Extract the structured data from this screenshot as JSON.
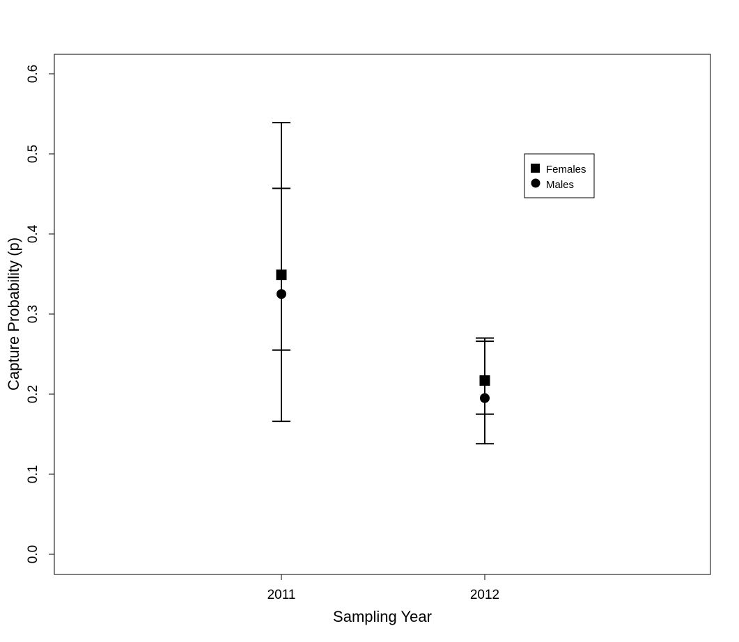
{
  "chart_data": {
    "type": "scatter",
    "xlabel": "Sampling Year",
    "ylabel": "Capture Probability (p)",
    "categories": [
      "2011",
      "2012"
    ],
    "ylim": [
      0.0,
      0.62
    ],
    "yticks": [
      "0.0",
      "0.1",
      "0.2",
      "0.3",
      "0.4",
      "0.5",
      "0.6"
    ],
    "grid": false,
    "legend_position": "top-right",
    "series": [
      {
        "name": "Females",
        "marker": "square",
        "color": "#000000",
        "points": [
          {
            "x": "2011",
            "y": 0.349,
            "lower": 0.255,
            "upper": 0.457
          },
          {
            "x": "2012",
            "y": 0.217,
            "lower": 0.175,
            "upper": 0.266
          }
        ]
      },
      {
        "name": "Males",
        "marker": "circle",
        "color": "#000000",
        "points": [
          {
            "x": "2011",
            "y": 0.325,
            "lower": 0.166,
            "upper": 0.539
          },
          {
            "x": "2012",
            "y": 0.195,
            "lower": 0.138,
            "upper": 0.27
          }
        ]
      }
    ]
  }
}
